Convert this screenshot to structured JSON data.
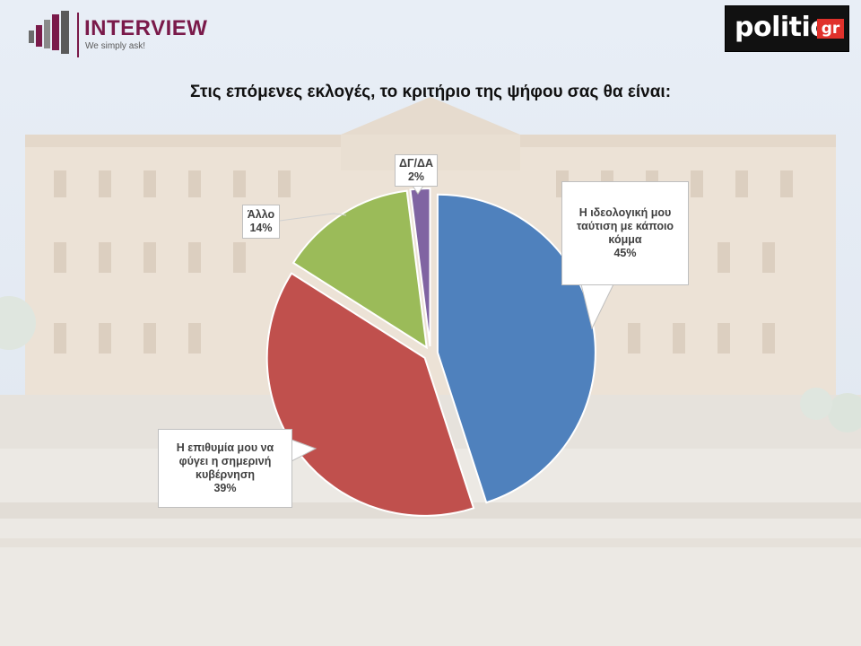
{
  "header": {
    "brand": "INTERVIEW",
    "tagline": "We simply ask!",
    "partner_word": "politic",
    "partner_suffix": "gr"
  },
  "colors": {
    "brand": "#7a1a4a",
    "partner_accent": "#e0312b"
  },
  "chart_data": {
    "type": "pie",
    "title": "Στις επόμενες εκλογές, το κριτήριο της ψήφου σας θα είναι:",
    "slices": [
      {
        "label_lines": [
          "Η ιδεολογική μου",
          "ταύτιση με κάποιο",
          "κόμμα"
        ],
        "value": 45,
        "value_label": "45%",
        "color": "#4f81bd"
      },
      {
        "label_lines": [
          "Η επιθυμία μου να",
          "φύγει η σημερινή",
          "κυβέρνηση"
        ],
        "value": 39,
        "value_label": "39%",
        "color": "#c0504d"
      },
      {
        "label_lines": [
          "Άλλο"
        ],
        "value": 14,
        "value_label": "14%",
        "color": "#9bbb59"
      },
      {
        "label_lines": [
          "ΔΓ/ΔΑ"
        ],
        "value": 2,
        "value_label": "2%",
        "color": "#8064a2"
      }
    ]
  }
}
